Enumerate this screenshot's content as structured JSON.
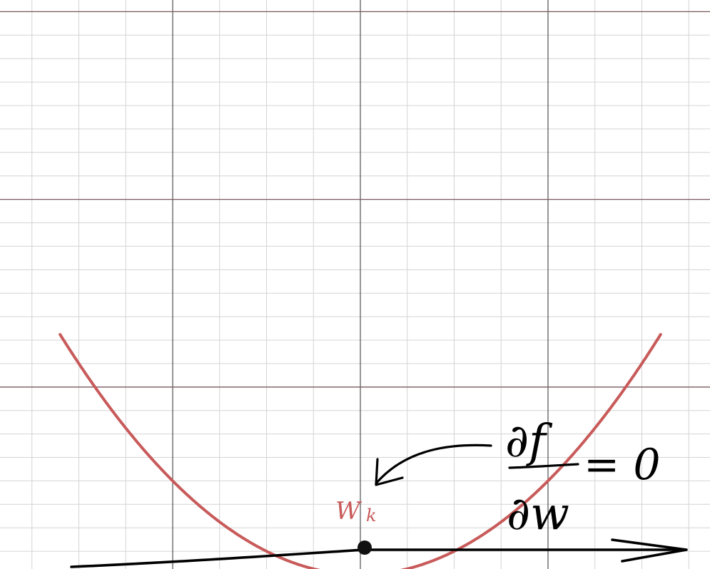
{
  "chart_data": {
    "type": "line",
    "title": "",
    "xlabel": "",
    "ylabel": "",
    "grid": true,
    "xlim": [
      -4,
      4
    ],
    "ylim": [
      0,
      16
    ],
    "function": "f(w) = w^2",
    "series": [
      {
        "color": "#c85a5a",
        "x": [
          -2.5,
          -2,
          -1.5,
          -1,
          -0.5,
          0,
          0.5,
          1,
          1.5,
          2,
          2.5
        ],
        "y": [
          6.25,
          4,
          2.25,
          1,
          0.25,
          0,
          0.25,
          1,
          2.25,
          4,
          6.25
        ]
      }
    ],
    "minimum_point": {
      "x": 0,
      "y": 0,
      "label_main": "W",
      "label_sub": "k",
      "color": "#c85a5a"
    },
    "annotation": {
      "numerator": "∂f",
      "denominator": "∂w",
      "equals": "= 0"
    },
    "colors": {
      "curve": "#c85a5a",
      "ink": "#000000",
      "minor_grid": "#d4d4d4",
      "major_grid_vertical": "#2b2b2b",
      "major_grid_horizontal": "#7a5a5e"
    }
  }
}
